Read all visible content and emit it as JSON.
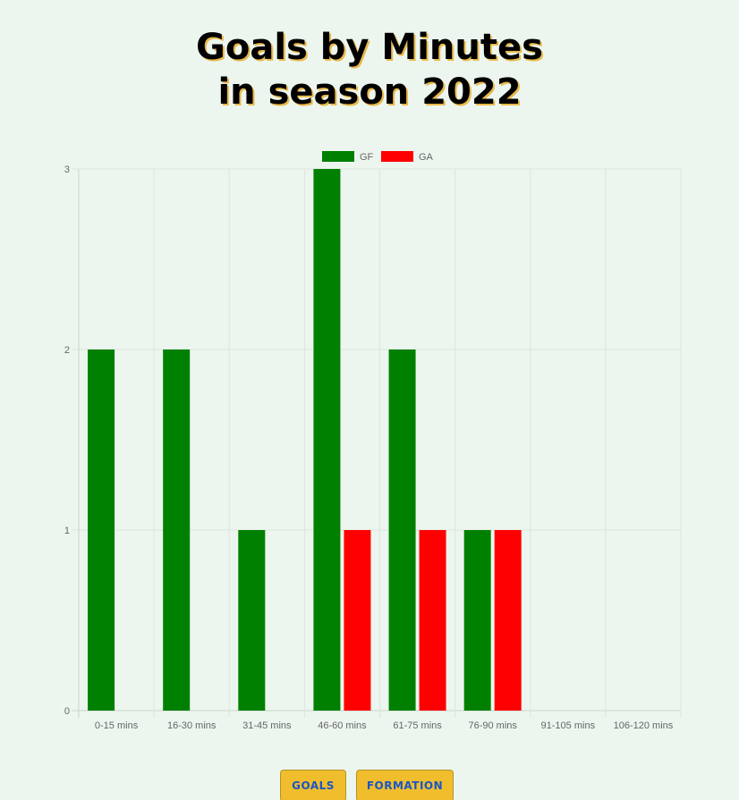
{
  "page": {
    "title_line1": "Goals by Minutes",
    "title_line2": "in season 2022"
  },
  "chart_data": {
    "type": "bar",
    "categories": [
      "0-15 mins",
      "16-30 mins",
      "31-45 mins",
      "46-60 mins",
      "61-75 mins",
      "76-90 mins",
      "91-105 mins",
      "106-120 mins"
    ],
    "series": [
      {
        "name": "GF",
        "color": "#008000",
        "values": [
          2,
          2,
          1,
          3,
          2,
          1,
          0,
          0
        ]
      },
      {
        "name": "GA",
        "color": "#ff0000",
        "values": [
          0,
          0,
          0,
          1,
          1,
          1,
          0,
          0
        ]
      }
    ],
    "ylim": [
      0,
      3
    ],
    "yticks": [
      "0",
      "1",
      "2",
      "3"
    ],
    "grid": true,
    "legend": "top-center"
  },
  "buttons": {
    "goals_label": "GOALS",
    "formation_label": "FORMATION"
  }
}
